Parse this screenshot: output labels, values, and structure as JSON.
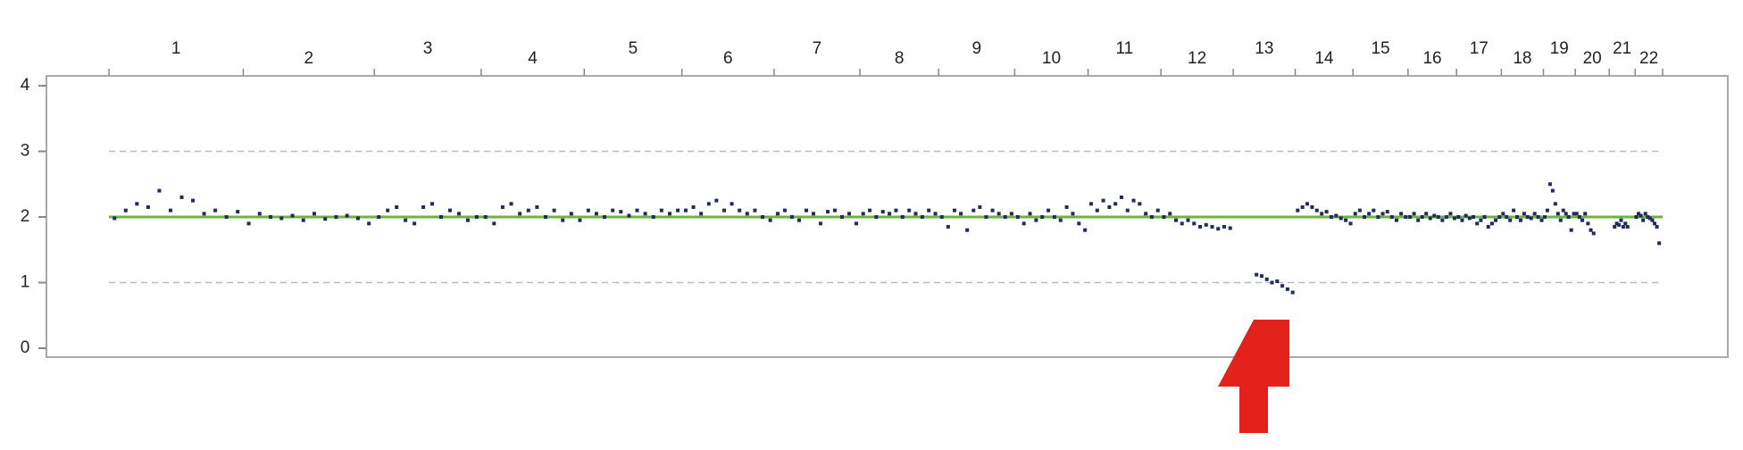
{
  "chart_data": {
    "type": "scatter",
    "categories": [
      "1",
      "2",
      "3",
      "4",
      "5",
      "6",
      "7",
      "8",
      "9",
      "10",
      "11",
      "12",
      "13",
      "14",
      "15",
      "16",
      "17",
      "18",
      "19",
      "20",
      "21",
      "22"
    ],
    "xlim": [
      0,
      2880
    ],
    "xticks": [
      0,
      249,
      492,
      690,
      881,
      1062,
      1233,
      1392,
      1538,
      1679,
      1815,
      1950,
      2084,
      2199,
      2306,
      2408,
      2498,
      2581,
      2659,
      2718,
      2781,
      2829,
      2880
    ],
    "ylim": [
      0,
      4
    ],
    "yticks": [
      0,
      1,
      2,
      3,
      4
    ],
    "grid_lines": [
      1,
      3
    ],
    "reference_line": 2,
    "reference_color": "#6db33f",
    "color": "#1f2c5c",
    "values": [
      [
        1.98,
        2.1,
        2.2,
        2.15,
        2.4,
        2.1,
        2.3,
        2.25,
        2.05,
        2.1,
        2.0,
        2.08
      ],
      [
        1.9,
        2.05,
        2.0,
        1.98,
        2.02,
        1.95,
        2.05,
        1.97,
        2.0,
        2.02,
        1.98,
        1.9
      ],
      [
        2.0,
        2.1,
        2.15,
        1.95,
        1.9,
        2.15,
        2.2,
        2.0,
        2.1,
        2.05,
        1.95,
        2.0
      ],
      [
        2.0,
        1.9,
        2.15,
        2.2,
        2.05,
        2.1,
        2.15,
        2.0,
        2.1,
        1.95,
        2.05,
        1.95
      ],
      [
        2.1,
        2.05,
        2.0,
        2.1,
        2.08,
        2.02,
        2.1,
        2.05,
        2.0,
        2.1,
        2.05,
        2.1
      ],
      [
        2.1,
        2.15,
        2.05,
        2.2,
        2.25,
        2.1,
        2.2,
        2.1,
        2.05,
        2.1,
        2.0,
        1.95
      ],
      [
        2.05,
        2.1,
        2.0,
        1.95,
        2.1,
        2.05,
        1.9,
        2.08,
        2.1,
        2.0,
        2.05,
        1.9
      ],
      [
        2.05,
        2.1,
        2.0,
        2.08,
        2.05,
        2.1,
        2.0,
        2.1,
        2.05,
        2.0,
        2.1,
        2.05
      ],
      [
        2.0,
        1.85,
        2.1,
        2.05,
        1.8,
        2.1,
        2.15,
        2.0,
        2.1,
        2.05,
        2.0,
        2.05
      ],
      [
        2.0,
        1.9,
        2.05,
        1.95,
        2.0,
        2.1,
        2.0,
        1.95,
        2.15,
        2.05,
        1.9,
        1.8
      ],
      [
        2.2,
        2.1,
        2.25,
        2.15,
        2.2,
        2.3,
        2.1,
        2.25,
        2.2,
        2.05,
        2.0,
        2.1
      ],
      [
        2.0,
        2.05,
        1.95,
        1.9,
        1.95,
        1.9,
        1.85,
        1.88,
        1.85,
        1.82,
        1.85,
        1.83
      ],
      [
        null,
        null,
        null,
        null,
        1.12,
        1.1,
        1.05,
        1.0,
        1.02,
        0.95,
        0.9,
        0.85
      ],
      [
        2.1,
        2.15,
        2.2,
        2.15,
        2.1,
        2.05,
        2.08,
        2.0,
        2.02,
        1.98,
        1.95,
        1.9
      ],
      [
        2.05,
        2.1,
        2.0,
        2.05,
        2.1,
        2.0,
        2.05,
        2.08,
        2.0,
        1.95,
        2.05,
        2.0
      ],
      [
        2.0,
        2.05,
        1.95,
        2.0,
        2.05,
        1.98,
        2.02,
        2.0,
        1.95,
        2.0,
        2.05,
        1.98
      ],
      [
        2.0,
        1.95,
        2.02,
        1.98,
        2.0,
        1.9,
        1.95,
        2.0,
        1.85,
        1.9,
        1.95,
        2.0
      ],
      [
        2.05,
        2.0,
        1.95,
        2.1,
        2.0,
        1.95,
        2.05,
        2.0,
        1.98,
        2.05,
        2.0,
        1.95
      ],
      [
        2.0,
        2.1,
        2.5,
        2.4,
        2.2,
        2.05,
        1.95,
        2.1,
        2.05,
        2.0,
        1.8,
        2.05
      ],
      [
        2.05,
        2.0,
        1.95,
        2.05,
        1.9,
        1.8,
        1.75,
        null,
        null,
        null,
        null,
        null
      ],
      [
        null,
        null,
        1.85,
        1.9,
        1.88,
        1.95,
        1.85,
        1.9,
        1.85,
        null,
        null,
        null
      ],
      [
        2.0,
        2.05,
        2.02,
        1.95,
        2.05,
        2.0,
        1.98,
        1.95,
        1.9,
        1.85,
        1.6,
        null
      ]
    ]
  }
}
